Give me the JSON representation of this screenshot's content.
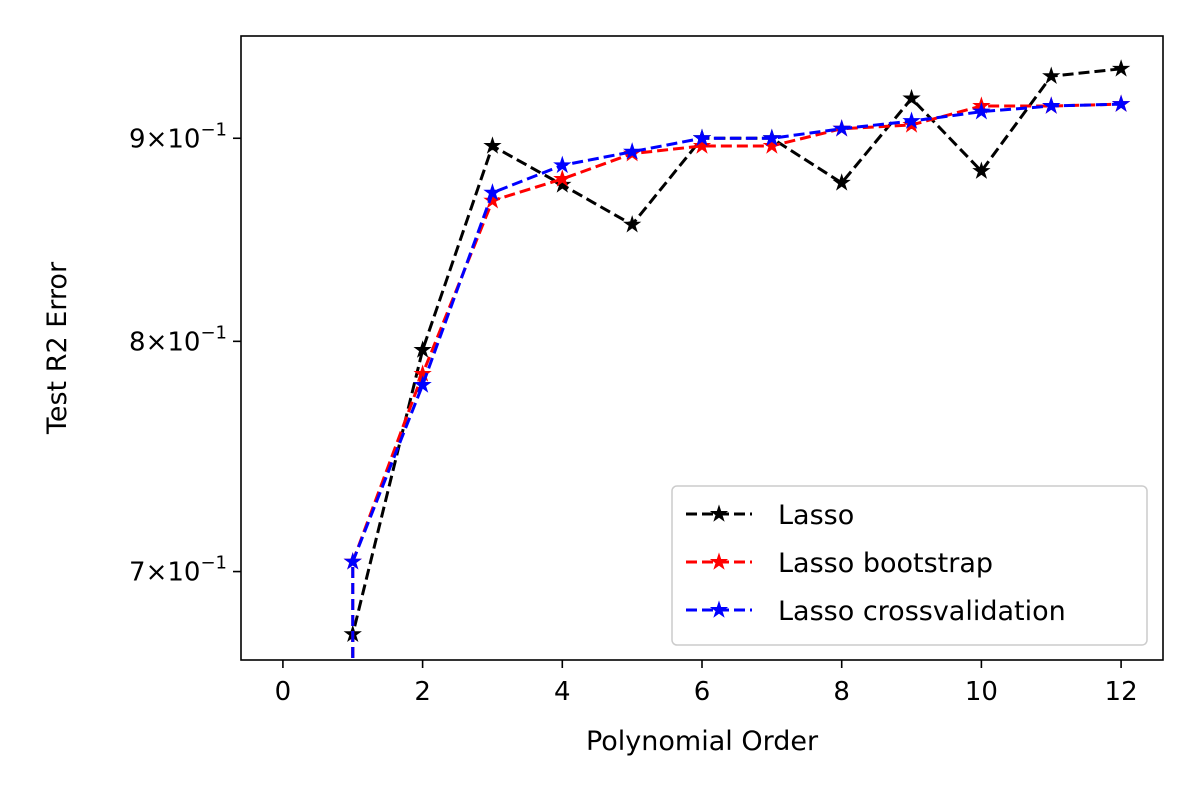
{
  "chart_data": {
    "type": "line",
    "title": "",
    "xlabel": "Polynomial Order",
    "ylabel": "Test R2 Error",
    "xlim": [
      -0.6,
      12.6
    ],
    "ylim": [
      0.665,
      0.955
    ],
    "yscale": "log",
    "x_ticks": [
      0,
      2,
      4,
      6,
      8,
      10,
      12
    ],
    "x_tick_labels": [
      "0",
      "2",
      "4",
      "6",
      "8",
      "10",
      "12"
    ],
    "y_ticks": [
      {
        "value": 0.7,
        "mantissa": "7",
        "base": "10",
        "exponent": "−1"
      },
      {
        "value": 0.8,
        "mantissa": "8",
        "base": "10",
        "exponent": "−1"
      },
      {
        "value": 0.9,
        "mantissa": "9",
        "base": "10",
        "exponent": "−1"
      }
    ],
    "times_sign": "×",
    "grid": false,
    "legend_position": "lower-right",
    "x": [
      1,
      2,
      3,
      4,
      5,
      6,
      7,
      8,
      9,
      10,
      11,
      12
    ],
    "series": [
      {
        "name": "Lasso",
        "color": "#000000",
        "values": [
          0.675,
          0.796,
          0.896,
          0.876,
          0.856,
          0.9,
          0.9,
          0.877,
          0.921,
          0.883,
          0.933,
          0.937
        ]
      },
      {
        "name": "Lasso bootstrap",
        "color": "#ff0000",
        "values": [
          0.704,
          0.785,
          0.868,
          0.879,
          0.892,
          0.896,
          0.896,
          0.905,
          0.907,
          0.917,
          0.917,
          0.918
        ]
      },
      {
        "name": "Lasso crossvalidation",
        "color": "#0000ff",
        "values": [
          0.704,
          0.78,
          0.872,
          0.886,
          0.893,
          0.9,
          0.9,
          0.905,
          0.909,
          0.914,
          0.917,
          0.918
        ]
      }
    ]
  }
}
